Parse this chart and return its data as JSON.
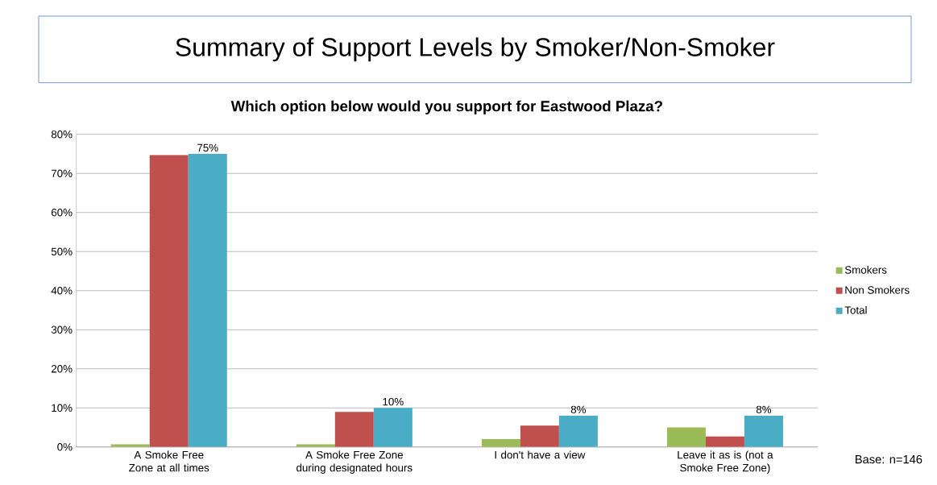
{
  "chart_data": {
    "type": "bar",
    "title": "Summary of Support Levels by Smoker/Non-Smoker",
    "subtitle": "Which option below would you support for Eastwood Plaza?",
    "categories": [
      "A Smoke Free Zone at all times",
      "A Smoke Free Zone during designated hours",
      "I don't have a view",
      "Leave it as is (not a Smoke Free Zone)"
    ],
    "series": [
      {
        "name": "Smokers",
        "color": "#9bbb59",
        "values": [
          0.7,
          0.7,
          2,
          5
        ]
      },
      {
        "name": "Non Smokers",
        "color": "#c0504d",
        "values": [
          74.7,
          9,
          5.5,
          2.7
        ]
      },
      {
        "name": "Total",
        "color": "#4bacc6",
        "values": [
          75,
          10,
          8,
          8
        ],
        "value_labels": [
          "75%",
          "10%",
          "8%",
          "8%"
        ]
      }
    ],
    "ylim": [
      0,
      80
    ],
    "yticks": [
      {
        "value": 0,
        "label": "0%"
      },
      {
        "value": 10,
        "label": "10%"
      },
      {
        "value": 20,
        "label": "20%"
      },
      {
        "value": 30,
        "label": "30%"
      },
      {
        "value": 40,
        "label": "40%"
      },
      {
        "value": 50,
        "label": "50%"
      },
      {
        "value": 60,
        "label": "60%"
      },
      {
        "value": 70,
        "label": "70%"
      },
      {
        "value": 80,
        "label": "80%"
      }
    ],
    "grid": "y",
    "legend": "right",
    "annotations": [
      "Base: n=146"
    ]
  }
}
